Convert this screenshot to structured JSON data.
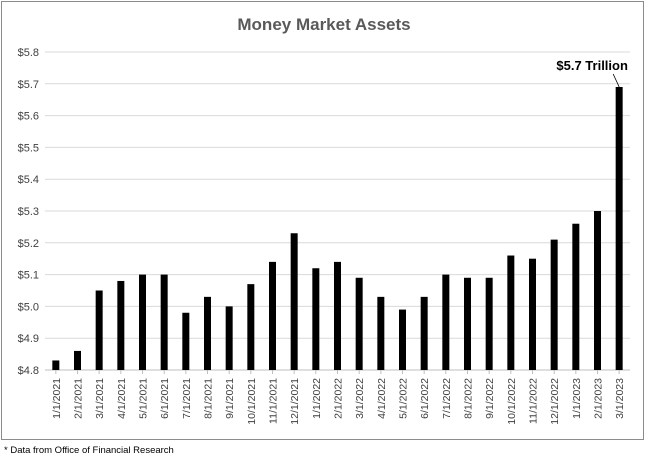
{
  "chart_data": {
    "type": "bar",
    "title": "Money Market Assets",
    "ylim": [
      4.8,
      5.8
    ],
    "yticks": [
      "$4.8",
      "$4.9",
      "$5.0",
      "$5.1",
      "$5.2",
      "$5.3",
      "$5.4",
      "$5.5",
      "$5.6",
      "$5.7",
      "$5.8"
    ],
    "categories": [
      "1/1/2021",
      "2/1/2021",
      "3/1/2021",
      "4/1/2021",
      "5/1/2021",
      "6/1/2021",
      "7/1/2021",
      "8/1/2021",
      "9/1/2021",
      "10/1/2021",
      "11/1/2021",
      "12/1/2021",
      "1/1/2022",
      "2/1/2022",
      "3/1/2022",
      "4/1/2022",
      "5/1/2022",
      "6/1/2022",
      "7/1/2022",
      "8/1/2022",
      "9/1/2022",
      "10/1/2022",
      "11/1/2022",
      "12/1/2022",
      "1/1/2023",
      "2/1/2023",
      "3/1/2023"
    ],
    "values": [
      4.83,
      4.86,
      5.05,
      5.08,
      5.1,
      5.1,
      4.98,
      5.03,
      5.0,
      5.07,
      5.14,
      5.23,
      5.12,
      5.14,
      5.09,
      5.03,
      4.99,
      5.03,
      5.1,
      5.09,
      5.09,
      5.16,
      5.15,
      5.21,
      5.26,
      5.3,
      5.69
    ],
    "bar_color": "#000000",
    "grid": true,
    "annotation": "$5.7 Trillion"
  },
  "footnote": "* Data from Office of Financial Research"
}
